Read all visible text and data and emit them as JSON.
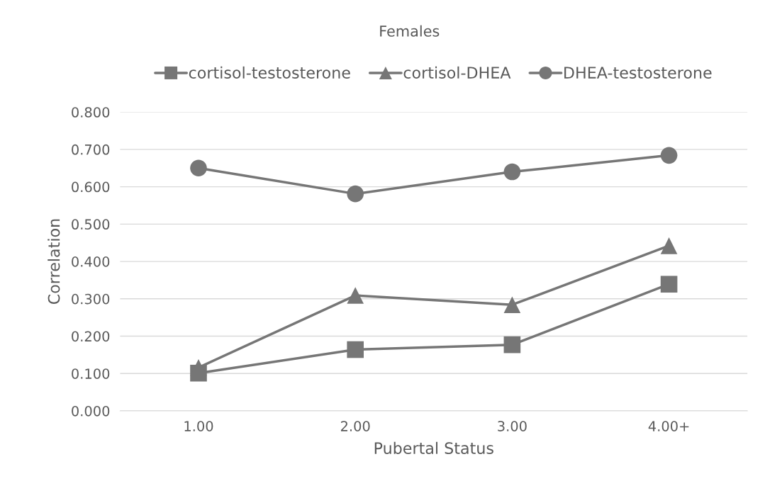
{
  "chart_data": {
    "type": "line",
    "title": "Females",
    "xlabel": "Pubertal Status",
    "ylabel": "Correlation",
    "categories": [
      "1.00",
      "2.00",
      "3.00",
      "4.00+"
    ],
    "series": [
      {
        "name": "cortisol-testosterone",
        "color": "#767676",
        "marker": "square",
        "values": [
          0.101,
          0.164,
          0.177,
          0.339
        ]
      },
      {
        "name": "cortisol-DHEA",
        "color": "#767676",
        "marker": "triangle",
        "values": [
          0.116,
          0.309,
          0.284,
          0.442
        ]
      },
      {
        "name": "DHEA-testosterone",
        "color": "#767676",
        "marker": "circle",
        "values": [
          0.65,
          0.581,
          0.64,
          0.684
        ]
      }
    ],
    "ylim": [
      0,
      0.8
    ],
    "yticks": [
      {
        "value": 0,
        "label": "0.000"
      },
      {
        "value": 0.1,
        "label": "0.100"
      },
      {
        "value": 0.2,
        "label": "0.200"
      },
      {
        "value": 0.3,
        "label": "0.300"
      },
      {
        "value": 0.4,
        "label": "0.400"
      },
      {
        "value": 0.5,
        "label": "0.500"
      },
      {
        "value": 0.6,
        "label": "0.600"
      },
      {
        "value": 0.7,
        "label": "0.700"
      },
      {
        "value": 0.8,
        "label": "0.800"
      }
    ],
    "grid": "y",
    "legend": "top"
  }
}
